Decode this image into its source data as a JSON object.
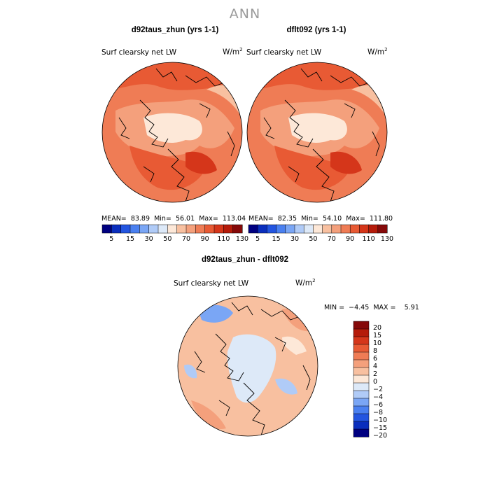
{
  "title": "ANN",
  "panels": [
    {
      "title": "d92taus_zhun (yrs 1-1)",
      "variable": "Surf clearsky net LW",
      "units": "W/m",
      "units_exp": "2",
      "stats": {
        "mean_label": "MEAN=",
        "mean": "83.89",
        "min_label": "Min=",
        "min": "56.01",
        "max_label": "Max=",
        "max": "113.04"
      }
    },
    {
      "title": "dflt092 (yrs 1-1)",
      "variable": "Surf clearsky net LW",
      "units": "W/m",
      "units_exp": "2",
      "stats": {
        "mean_label": "MEAN=",
        "mean": "82.35",
        "min_label": "Min=",
        "min": "54.10",
        "max_label": "Max=",
        "max": "111.80"
      }
    }
  ],
  "diff_panel": {
    "title": "d92taus_zhun - dflt092",
    "variable": "Surf clearsky net LW",
    "units": "W/m",
    "units_exp": "2",
    "stats": {
      "min_label": "MIN =",
      "min": "−4.45",
      "max_label": "MAX =",
      "max": "5.91"
    }
  },
  "colorbar_field": {
    "colors": [
      "#000080",
      "#0a2ebd",
      "#2355e0",
      "#4a80f0",
      "#7aa6f5",
      "#b0cbf7",
      "#dde9f8",
      "#fde8d8",
      "#f8c0a0",
      "#f4a07c",
      "#ef7c55",
      "#e85a34",
      "#d5361a",
      "#b51b0a",
      "#850909"
    ],
    "tick_labels": [
      "5",
      "15",
      "30",
      "50",
      "70",
      "90",
      "110",
      "130"
    ]
  },
  "colorbar_diff": {
    "colors_top_to_bottom": [
      "#850909",
      "#b51b0a",
      "#d5361a",
      "#e85a34",
      "#ef7c55",
      "#f4a07c",
      "#f8c0a0",
      "#fde8d8",
      "#dde9f8",
      "#b0cbf7",
      "#7aa6f5",
      "#4a80f0",
      "#2355e0",
      "#0a2ebd",
      "#000080"
    ],
    "tick_labels": [
      "20",
      "15",
      "10",
      "8",
      "6",
      "4",
      "2",
      "0",
      "−2",
      "−4",
      "−6",
      "−8",
      "−10",
      "−15",
      "−20"
    ]
  },
  "chart_data": [
    {
      "type": "heatmap",
      "projection": "north polar stereographic",
      "title": "d92taus_zhun (yrs 1-1)",
      "variable": "Surf clearsky net LW",
      "units": "W/m2",
      "mean": 83.89,
      "min": 56.01,
      "max": 113.04,
      "levels": [
        5,
        15,
        30,
        50,
        70,
        90,
        110,
        130
      ]
    },
    {
      "type": "heatmap",
      "projection": "north polar stereographic",
      "title": "dflt092 (yrs 1-1)",
      "variable": "Surf clearsky net LW",
      "units": "W/m2",
      "mean": 82.35,
      "min": 54.1,
      "max": 111.8,
      "levels": [
        5,
        15,
        30,
        50,
        70,
        90,
        110,
        130
      ]
    },
    {
      "type": "heatmap",
      "projection": "north polar stereographic",
      "title": "d92taus_zhun - dflt092",
      "variable": "Surf clearsky net LW",
      "units": "W/m2",
      "min": -4.45,
      "max": 5.91,
      "levels": [
        -20,
        -15,
        -10,
        -8,
        -6,
        -4,
        -2,
        0,
        2,
        4,
        6,
        8,
        10,
        15,
        20
      ]
    }
  ]
}
